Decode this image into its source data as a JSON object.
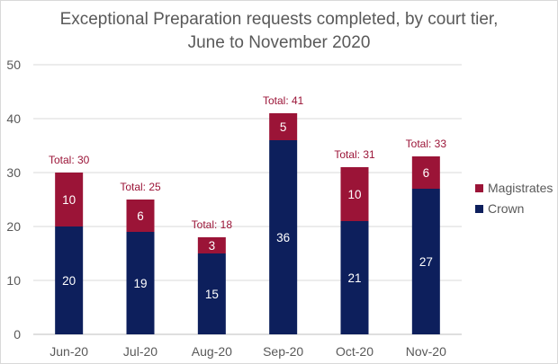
{
  "chart_data": {
    "type": "bar",
    "stacked": true,
    "title": "Exceptional Preparation requests completed, by court tier,",
    "subtitle": "June to November 2020",
    "xlabel": "",
    "ylabel": "",
    "categories": [
      "Jun-20",
      "Jul-20",
      "Aug-20",
      "Sep-20",
      "Oct-20",
      "Nov-20"
    ],
    "series": [
      {
        "name": "Crown",
        "values": [
          20,
          19,
          15,
          36,
          21,
          27
        ],
        "color": "#0d1f5c"
      },
      {
        "name": "Magistrates",
        "values": [
          10,
          6,
          3,
          5,
          10,
          6
        ],
        "color": "#9b1437"
      }
    ],
    "totals": [
      "Total: 30",
      "Total: 25",
      "Total: 18",
      "Total: 41",
      "Total: 31",
      "Total: 33"
    ],
    "ylim": [
      0,
      50
    ],
    "yticks": [
      0,
      10,
      20,
      30,
      40,
      50
    ],
    "grid": true,
    "legend_position": "right",
    "legend_order": [
      "Magistrates",
      "Crown"
    ]
  }
}
